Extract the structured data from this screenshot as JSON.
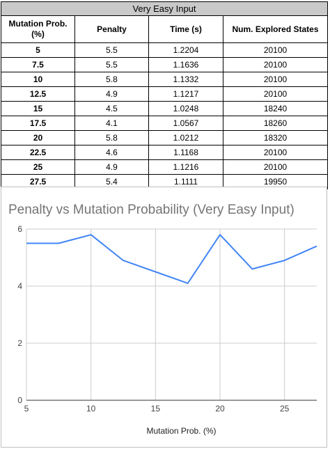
{
  "table": {
    "title": "Very Easy Input",
    "headers": [
      "Mutation Prob. (%)",
      "Penalty",
      "Time (s)",
      "Num. Explored States"
    ],
    "rows": [
      [
        "5",
        "5.5",
        "1.2204",
        "20100"
      ],
      [
        "7.5",
        "5.5",
        "1.1636",
        "20100"
      ],
      [
        "10",
        "5.8",
        "1.1332",
        "20100"
      ],
      [
        "12.5",
        "4.9",
        "1.1217",
        "20100"
      ],
      [
        "15",
        "4.5",
        "1.0248",
        "18240"
      ],
      [
        "17.5",
        "4.1",
        "1.0567",
        "18260"
      ],
      [
        "20",
        "5.8",
        "1.0212",
        "18320"
      ],
      [
        "22.5",
        "4.6",
        "1.1168",
        "20100"
      ],
      [
        "25",
        "4.9",
        "1.1216",
        "20100"
      ],
      [
        "27.5",
        "5.4",
        "1.1111",
        "19950"
      ]
    ]
  },
  "chart_data": {
    "type": "line",
    "title": "Penalty vs Mutation Probability (Very Easy Input)",
    "xlabel": "Mutation Prob. (%)",
    "ylabel": "",
    "x": [
      5,
      7.5,
      10,
      12.5,
      15,
      17.5,
      20,
      22.5,
      25,
      27.5
    ],
    "series": [
      {
        "values": [
          5.5,
          5.5,
          5.8,
          4.9,
          4.5,
          4.1,
          5.8,
          4.6,
          4.9,
          5.4
        ]
      }
    ],
    "xlim": [
      5,
      27.5
    ],
    "ylim": [
      0,
      6
    ],
    "xticks": [
      5,
      10,
      15,
      20,
      25
    ],
    "yticks": [
      0,
      2,
      4,
      6
    ],
    "grid": true,
    "legend": "none",
    "colors": {
      "line": "#4285f4",
      "grid": "#cccccc",
      "axis": "#333333",
      "tick_text": "#444444",
      "title_text": "#757575",
      "header_bg": "#c9c9c9"
    }
  }
}
